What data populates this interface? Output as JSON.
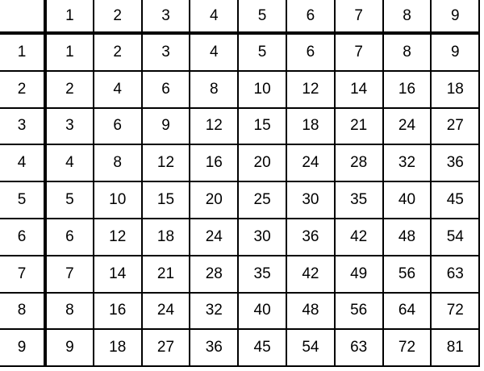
{
  "table": {
    "column_headers": [
      "1",
      "2",
      "3",
      "4",
      "5",
      "6",
      "7",
      "8",
      "9"
    ],
    "rows": [
      {
        "header": "1",
        "cells": [
          "1",
          "2",
          "3",
          "4",
          "5",
          "6",
          "7",
          "8",
          "9"
        ]
      },
      {
        "header": "2",
        "cells": [
          "2",
          "4",
          "6",
          "8",
          "10",
          "12",
          "14",
          "16",
          "18"
        ]
      },
      {
        "header": "3",
        "cells": [
          "3",
          "6",
          "9",
          "12",
          "15",
          "18",
          "21",
          "24",
          "27"
        ]
      },
      {
        "header": "4",
        "cells": [
          "4",
          "8",
          "12",
          "16",
          "20",
          "24",
          "28",
          "32",
          "36"
        ]
      },
      {
        "header": "5",
        "cells": [
          "5",
          "10",
          "15",
          "20",
          "25",
          "30",
          "35",
          "40",
          "45"
        ]
      },
      {
        "header": "6",
        "cells": [
          "6",
          "12",
          "18",
          "24",
          "30",
          "36",
          "42",
          "48",
          "54"
        ]
      },
      {
        "header": "7",
        "cells": [
          "7",
          "14",
          "21",
          "28",
          "35",
          "42",
          "49",
          "56",
          "63"
        ]
      },
      {
        "header": "8",
        "cells": [
          "8",
          "16",
          "24",
          "32",
          "40",
          "48",
          "56",
          "64",
          "72"
        ]
      },
      {
        "header": "9",
        "cells": [
          "9",
          "18",
          "27",
          "36",
          "45",
          "54",
          "63",
          "72",
          "81"
        ]
      }
    ]
  }
}
